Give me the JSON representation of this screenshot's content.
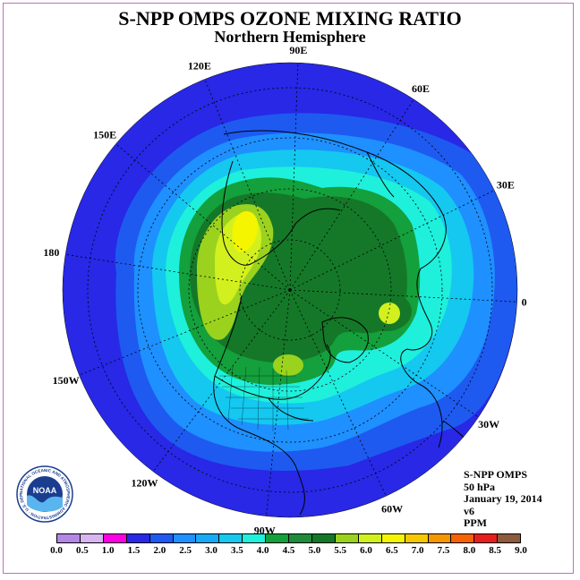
{
  "title": "S-NPP OMPS OZONE MIXING RATIO",
  "subtitle": "Northern Hemisphere",
  "longitude_labels": [
    "90E",
    "60E",
    "30E",
    "0",
    "30W",
    "60W",
    "90W",
    "120W",
    "150W",
    "180",
    "150E",
    "120E"
  ],
  "info": {
    "product": "S-NPP OMPS",
    "level": "50 hPa",
    "date": "January 19, 2014",
    "version": "v6",
    "units": "PPM"
  },
  "logo": {
    "text": "NOAA",
    "ring_text": "NATIONAL OCEANIC AND ATMOSPHERIC ADMINISTRATION · U.S. DEPARTMENT OF COMMERCE"
  },
  "colorbar": {
    "ticks": [
      "0.0",
      "0.5",
      "1.0",
      "1.5",
      "2.0",
      "2.5",
      "3.0",
      "3.5",
      "4.0",
      "4.5",
      "5.0",
      "5.5",
      "6.0",
      "6.5",
      "7.0",
      "7.5",
      "8.0",
      "8.5",
      "9.0"
    ],
    "colors": [
      "#b486e6",
      "#d8b4f0",
      "#ff00e6",
      "#2828e6",
      "#1e5af0",
      "#1e90ff",
      "#14aaf5",
      "#14c8f0",
      "#1ef0dc",
      "#14a03c",
      "#1e8c3c",
      "#147828",
      "#9bd21e",
      "#d2f01e",
      "#f5f500",
      "#f5c800",
      "#f59600",
      "#f56400",
      "#e61e1e",
      "#8c5a3c"
    ]
  },
  "map_colors": {
    "c2_0": "#2828e6",
    "c2_5": "#1e5af0",
    "c3_0": "#1e90ff",
    "c3_5": "#14c8f0",
    "c4_0": "#1ef0dc",
    "c4_5": "#14a03c",
    "c5_0": "#147828",
    "c5_5": "#9bd21e",
    "c6_0": "#d2f01e",
    "c6_5": "#f5f500"
  }
}
